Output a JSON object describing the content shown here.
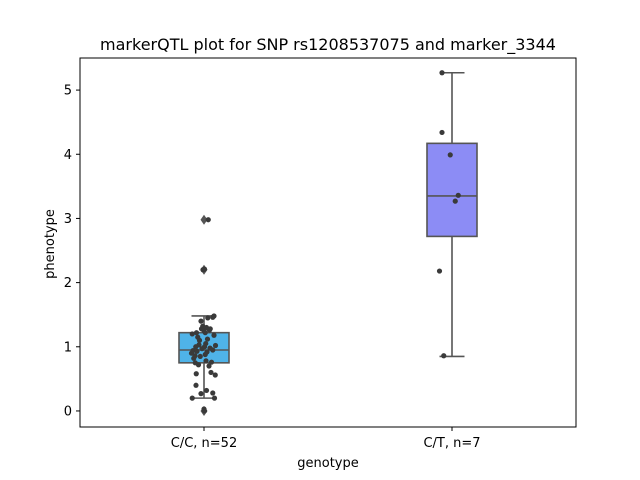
{
  "chart_data": {
    "type": "box",
    "title": "markerQTL plot for SNP rs1208537075 and marker_3344",
    "xlabel": "genotype",
    "ylabel": "phenotype",
    "ylim": [
      -0.25,
      5.5
    ],
    "yticks": [
      0,
      1,
      2,
      3,
      4,
      5
    ],
    "categories": [
      "C/C, n=52",
      "C/T, n=7"
    ],
    "colors": [
      "#4fb3e8",
      "#8c8cf5"
    ],
    "boxes": [
      {
        "category": "C/C, n=52",
        "q1": 0.75,
        "median": 0.95,
        "q3": 1.22,
        "whisker_low": 0.2,
        "whisker_high": 1.48,
        "outliers": [
          0.0,
          2.2,
          2.98
        ],
        "points": [
          [
            0.17,
            2.98
          ],
          [
            -0.04,
            2.2
          ],
          [
            0.02,
            2.21
          ],
          [
            -0.47,
            0.2
          ],
          [
            0.02,
            0.0
          ],
          [
            0.0,
            0.03
          ],
          [
            -0.12,
            0.27
          ],
          [
            0.35,
            0.28
          ],
          [
            0.42,
            0.2
          ],
          [
            0.1,
            0.32
          ],
          [
            -0.32,
            0.4
          ],
          [
            0.45,
            0.56
          ],
          [
            -0.31,
            0.58
          ],
          [
            -0.35,
            0.75
          ],
          [
            0.08,
            0.78
          ],
          [
            -0.22,
            0.72
          ],
          [
            0.2,
            0.7
          ],
          [
            -0.41,
            0.82
          ],
          [
            0.3,
            0.76
          ],
          [
            -0.15,
            0.85
          ],
          [
            0.05,
            0.88
          ],
          [
            -0.5,
            0.9
          ],
          [
            -0.44,
            0.94
          ],
          [
            -0.28,
            0.93
          ],
          [
            0.12,
            0.92
          ],
          [
            0.35,
            0.95
          ],
          [
            -0.08,
            0.97
          ],
          [
            0.24,
            0.98
          ],
          [
            -0.33,
            1.0
          ],
          [
            0.46,
            1.02
          ],
          [
            -0.2,
            1.03
          ],
          [
            0.07,
            1.05
          ],
          [
            0.02,
            1.0
          ],
          [
            -0.47,
            1.2
          ],
          [
            -0.18,
            1.1
          ],
          [
            0.14,
            1.12
          ],
          [
            0.4,
            1.18
          ],
          [
            -0.3,
            1.22
          ],
          [
            0.0,
            1.25
          ],
          [
            0.22,
            1.26
          ],
          [
            -0.1,
            1.28
          ],
          [
            0.1,
            1.3
          ],
          [
            -0.05,
            1.32
          ],
          [
            0.35,
            1.46
          ],
          [
            0.4,
            1.48
          ],
          [
            0.15,
            1.45
          ],
          [
            -0.12,
            1.4
          ],
          [
            0.25,
            1.28
          ],
          [
            0.05,
            1.22
          ],
          [
            -0.36,
            0.86
          ],
          [
            0.28,
            0.6
          ],
          [
            -0.25,
            1.15
          ]
        ]
      },
      {
        "category": "C/T, n=7",
        "q1": 2.72,
        "median": 3.35,
        "q3": 4.17,
        "whisker_low": 0.85,
        "whisker_high": 5.27,
        "outliers": [],
        "points": [
          [
            -0.4,
            5.27
          ],
          [
            -0.4,
            4.34
          ],
          [
            -0.07,
            3.99
          ],
          [
            0.25,
            3.36
          ],
          [
            0.13,
            3.27
          ],
          [
            -0.5,
            2.18
          ],
          [
            -0.33,
            0.86
          ]
        ]
      }
    ],
    "grid": false,
    "legend": "none"
  }
}
